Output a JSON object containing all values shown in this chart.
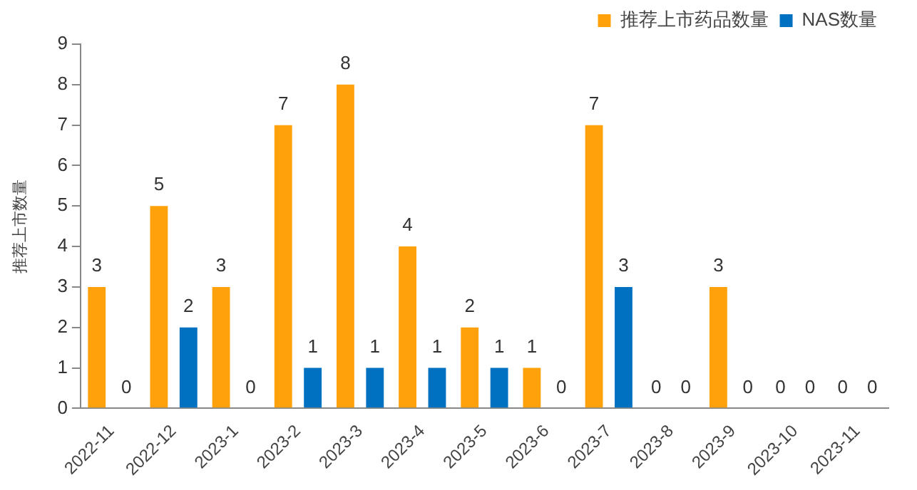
{
  "chart_data": {
    "type": "bar",
    "ylabel": "推荐上市数量",
    "categories": [
      "2022-11",
      "2022-12",
      "2023-1",
      "2023-2",
      "2023-3",
      "2023-4",
      "2023-5",
      "2023-6",
      "2023-7",
      "2023-8",
      "2023-9",
      "2023-10",
      "2023-11"
    ],
    "series": [
      {
        "name": "推荐上市药品数量",
        "color": "#ffa10a",
        "values": [
          3,
          5,
          3,
          7,
          8,
          4,
          2,
          1,
          7,
          0,
          3,
          0,
          0
        ]
      },
      {
        "name": "NAS数量",
        "color": "#0070c0",
        "values": [
          0,
          2,
          0,
          1,
          1,
          1,
          1,
          0,
          3,
          0,
          0,
          0,
          0
        ]
      }
    ],
    "ylim": [
      0,
      9
    ],
    "yticks": [
      0,
      1,
      2,
      3,
      4,
      5,
      6,
      7,
      8,
      9
    ],
    "grid": false,
    "legend": "top right",
    "data_labels": true
  }
}
